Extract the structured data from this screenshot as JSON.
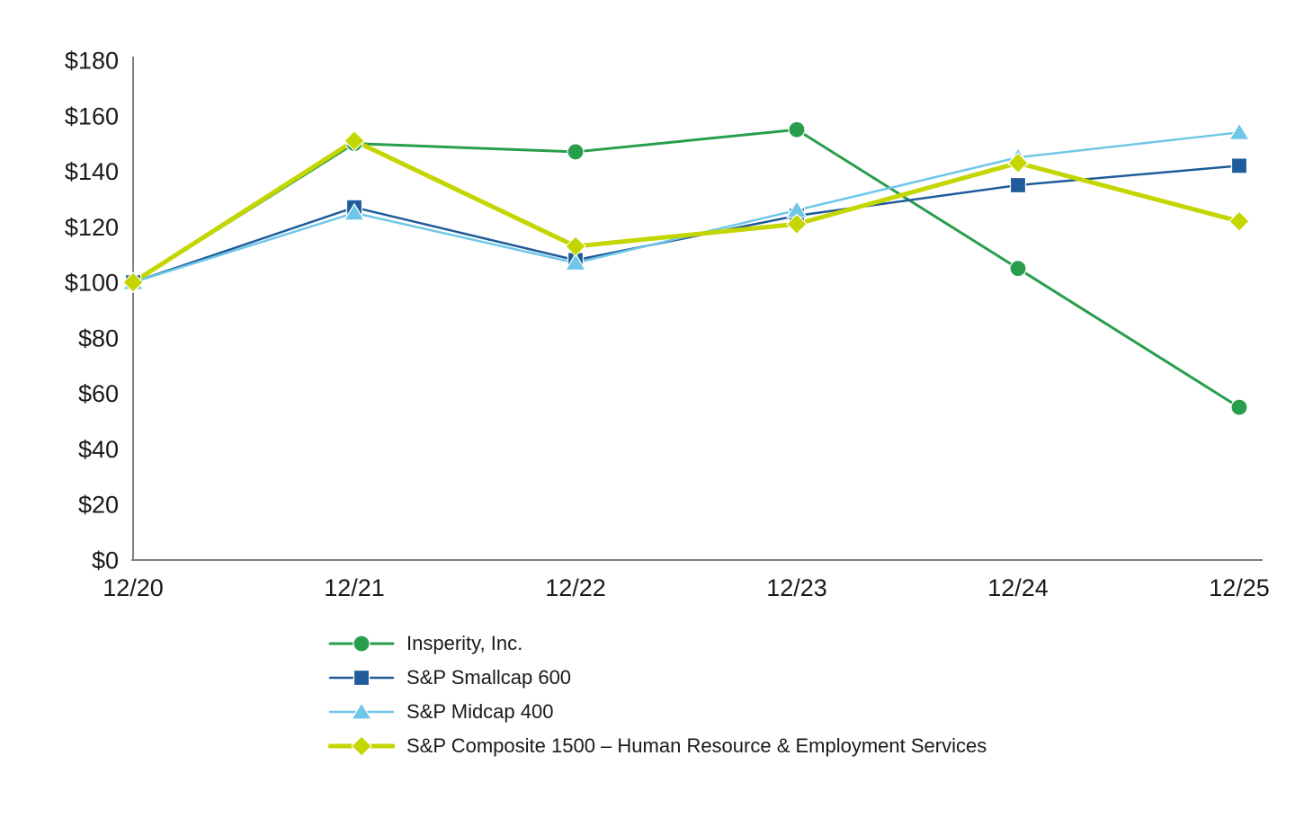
{
  "chart_data": {
    "type": "line",
    "title": "",
    "x": [
      "12/20",
      "12/21",
      "12/22",
      "12/23",
      "12/24",
      "12/25"
    ],
    "y_ticks": [
      "$0",
      "$20",
      "$40",
      "$60",
      "$80",
      "$100",
      "$120",
      "$140",
      "$160",
      "$180"
    ],
    "ylim": [
      0,
      180
    ],
    "y_tick_step": 20,
    "currency_prefix": "$",
    "grid": false,
    "legend_position": "bottom-left",
    "series": [
      {
        "name": "Insperity, Inc.",
        "marker": "circle",
        "color": "#289e4c",
        "line_width": 3,
        "values": [
          100,
          150,
          147,
          155,
          105,
          55
        ]
      },
      {
        "name": "S&P Smallcap 600",
        "marker": "square",
        "color": "#1f5c99",
        "line_width": 2.5,
        "values": [
          100,
          127,
          108,
          124,
          135,
          142
        ]
      },
      {
        "name": "S&P Midcap 400",
        "marker": "triangle",
        "color": "#6fc7e8",
        "line_width": 2.5,
        "values": [
          100,
          125,
          107,
          126,
          145,
          154
        ]
      },
      {
        "name": "S&P Composite 1500 – Human Resource & Employment Services",
        "marker": "diamond",
        "color": "#c4d600",
        "line_width": 5,
        "values": [
          100,
          151,
          113,
          121,
          143,
          122
        ]
      }
    ]
  },
  "axis": {
    "line_color": "#808080",
    "text_color": "#1a1a1a"
  }
}
